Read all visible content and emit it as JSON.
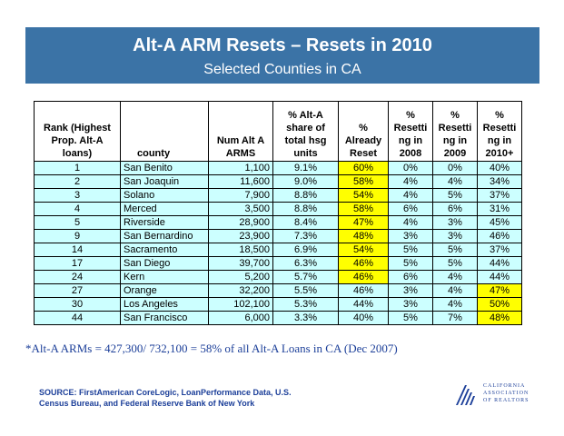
{
  "header": {
    "title": "Alt-A ARM Resets – Resets in 2010",
    "subtitle": "Selected Counties in CA"
  },
  "table": {
    "headers": {
      "rank": [
        "Rank (Highest",
        "Prop. Alt-A",
        "loans)"
      ],
      "county": [
        "county"
      ],
      "arms": [
        "Num Alt A",
        "ARMS"
      ],
      "share": [
        "% Alt-A",
        "share of",
        "total hsg",
        "units"
      ],
      "reset": [
        "%",
        "Already",
        "Reset"
      ],
      "r2008": [
        "%",
        "Resetti",
        "ng in",
        "2008"
      ],
      "r2009": [
        "%",
        "Resetti",
        "ng in",
        "2009"
      ],
      "r2010": [
        "%",
        "Resetti",
        "ng in",
        "2010+"
      ]
    },
    "rows": [
      {
        "rank": "1",
        "county": "San Benito",
        "arms": "1,100",
        "share": "9.1%",
        "reset": "60%",
        "r2008": "0%",
        "r2009": "0%",
        "r2010": "40%",
        "hl_reset": true,
        "hl_2010": false
      },
      {
        "rank": "2",
        "county": "San Joaquin",
        "arms": "11,600",
        "share": "9.0%",
        "reset": "58%",
        "r2008": "4%",
        "r2009": "4%",
        "r2010": "34%",
        "hl_reset": true,
        "hl_2010": false
      },
      {
        "rank": "3",
        "county": "Solano",
        "arms": "7,900",
        "share": "8.8%",
        "reset": "54%",
        "r2008": "4%",
        "r2009": "5%",
        "r2010": "37%",
        "hl_reset": true,
        "hl_2010": false
      },
      {
        "rank": "4",
        "county": "Merced",
        "arms": "3,500",
        "share": "8.8%",
        "reset": "58%",
        "r2008": "6%",
        "r2009": "6%",
        "r2010": "31%",
        "hl_reset": true,
        "hl_2010": false
      },
      {
        "rank": "5",
        "county": "Riverside",
        "arms": "28,900",
        "share": "8.4%",
        "reset": "47%",
        "r2008": "4%",
        "r2009": "3%",
        "r2010": "45%",
        "hl_reset": true,
        "hl_2010": false
      },
      {
        "rank": "9",
        "county": "San Bernardino",
        "arms": "23,900",
        "share": "7.3%",
        "reset": "48%",
        "r2008": "3%",
        "r2009": "3%",
        "r2010": "46%",
        "hl_reset": true,
        "hl_2010": false
      },
      {
        "rank": "14",
        "county": "Sacramento",
        "arms": "18,500",
        "share": "6.9%",
        "reset": "54%",
        "r2008": "5%",
        "r2009": "5%",
        "r2010": "37%",
        "hl_reset": true,
        "hl_2010": false
      },
      {
        "rank": "17",
        "county": "San Diego",
        "arms": "39,700",
        "share": "6.3%",
        "reset": "46%",
        "r2008": "5%",
        "r2009": "5%",
        "r2010": "44%",
        "hl_reset": true,
        "hl_2010": false
      },
      {
        "rank": "24",
        "county": "Kern",
        "arms": "5,200",
        "share": "5.7%",
        "reset": "46%",
        "r2008": "6%",
        "r2009": "4%",
        "r2010": "44%",
        "hl_reset": true,
        "hl_2010": false
      },
      {
        "rank": "27",
        "county": "Orange",
        "arms": "32,200",
        "share": "5.5%",
        "reset": "46%",
        "r2008": "3%",
        "r2009": "4%",
        "r2010": "47%",
        "hl_reset": false,
        "hl_2010": true
      },
      {
        "rank": "30",
        "county": "Los Angeles",
        "arms": "102,100",
        "share": "5.3%",
        "reset": "44%",
        "r2008": "3%",
        "r2009": "4%",
        "r2010": "50%",
        "hl_reset": false,
        "hl_2010": true
      },
      {
        "rank": "44",
        "county": "San Francisco",
        "arms": "6,000",
        "share": "3.3%",
        "reset": "40%",
        "r2008": "5%",
        "r2009": "7%",
        "r2010": "48%",
        "hl_reset": false,
        "hl_2010": true
      }
    ]
  },
  "note": "*Alt-A ARMs = 427,300/ 732,100 = 58% of all Alt-A Loans in CA (Dec 2007)",
  "source": [
    "SOURCE: FirstAmerican CoreLogic, LoanPerformance Data, U.S.",
    "Census Bureau, and Federal Reserve Bank of New York"
  ],
  "logo": {
    "lines": [
      "CALIFORNIA",
      "ASSOCIATION",
      "OF REALTORS"
    ],
    "icon": "car-logo-icon"
  },
  "colors": {
    "banner": "#3b73a6",
    "cell": "#ccffff",
    "highlight": "#ffff00",
    "text_blue": "#1c3f99"
  }
}
